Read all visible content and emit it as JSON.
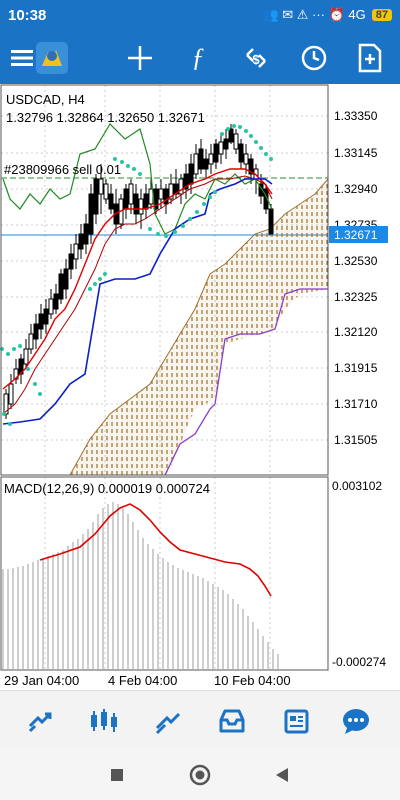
{
  "status": {
    "time": "10:38",
    "icons": "👥 ✉ ⚠ ··· ⏰ 4G",
    "battery": "87"
  },
  "toolbar": {
    "icons": [
      "menu-icon",
      "app-logo-icon",
      "crosshair-icon",
      "function-icon",
      "trade-icon",
      "clock-icon",
      "new-document-icon"
    ]
  },
  "chart": {
    "symbol": "USDCAD, H4",
    "ohlc": "1.32796 1.32864 1.32650 1.32671",
    "order_label": "#23809966 sell 0.01",
    "current_price": "1.32671",
    "price_ticks": [
      "1.33350",
      "1.33145",
      "1.32940",
      "1.32735",
      "1.32530",
      "1.32325",
      "1.32120",
      "1.31915",
      "1.31710",
      "1.31505"
    ],
    "time_ticks": [
      "29 Jan 04:00",
      "4 Feb 04:00",
      "10 Feb 04:00"
    ],
    "macd_label": "MACD(12,26,9) 0.000019 0.000724",
    "macd_ticks": [
      "0.003102",
      "-0.000274"
    ],
    "colors": {
      "bull": "#000000",
      "ma_red": "#e00000",
      "kijun_blue": "#0a1fcf",
      "cloud": "#a0702a",
      "psar": "#26c7a0",
      "order_line": "#2e8b2e",
      "price_line": "#1e88e5",
      "span_purple": "#8a3fc9",
      "macd_hist": "#bdbdbd"
    }
  },
  "bottomnav": {
    "icons": [
      "quotes-icon",
      "chart-icon",
      "trade-icon",
      "history-icon",
      "news-icon",
      "messages-icon"
    ]
  },
  "sysnav": {
    "icons": [
      "square-icon",
      "home-circle-icon",
      "back-triangle-icon"
    ]
  }
}
